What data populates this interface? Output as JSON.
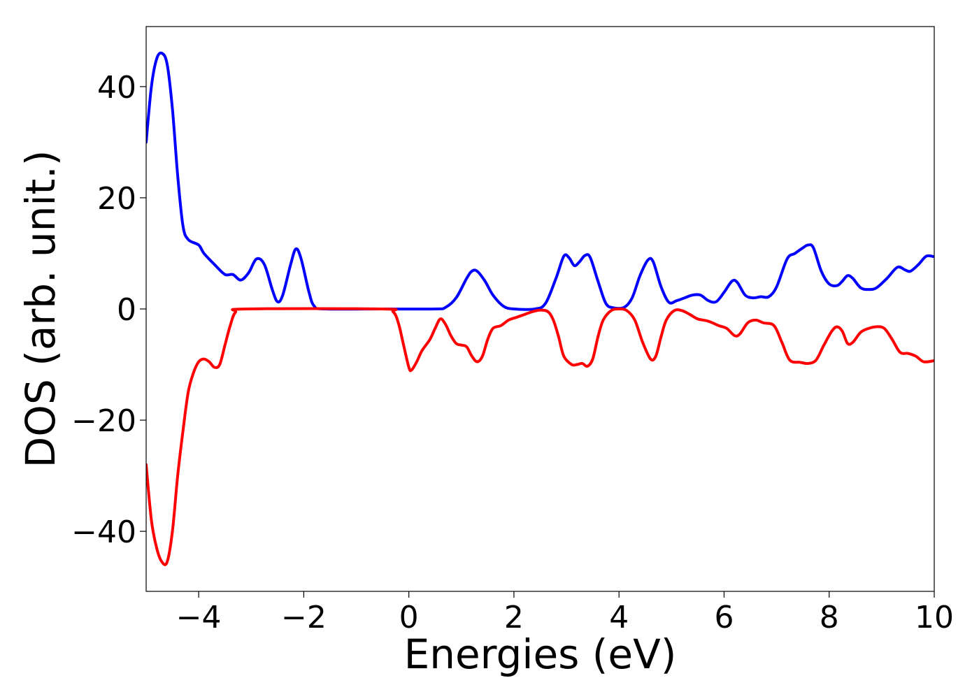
{
  "chart_data": {
    "type": "line",
    "xlabel": "Energies (eV)",
    "ylabel": "DOS (arb. unit.)",
    "xlim": [
      -5,
      10
    ],
    "ylim": [
      -50.8,
      50.8
    ],
    "xticks": [
      -4,
      -2,
      0,
      2,
      4,
      6,
      8,
      10
    ],
    "xtick_labels": [
      "−4",
      "−2",
      "0",
      "2",
      "4",
      "6",
      "8",
      "10"
    ],
    "yticks": [
      -40,
      -20,
      0,
      20,
      40
    ],
    "ytick_labels": [
      "−40",
      "−20",
      "0",
      "20",
      "40"
    ],
    "grid": false,
    "legend": "none",
    "series": [
      {
        "color": "#0000ff",
        "points": [
          [
            -5.0,
            30
          ],
          [
            -4.9,
            40
          ],
          [
            -4.8,
            45
          ],
          [
            -4.7,
            46
          ],
          [
            -4.6,
            44
          ],
          [
            -4.5,
            36
          ],
          [
            -4.4,
            24
          ],
          [
            -4.3,
            15
          ],
          [
            -4.2,
            12.5
          ],
          [
            -4.0,
            11.5
          ],
          [
            -3.9,
            10
          ],
          [
            -3.7,
            8
          ],
          [
            -3.5,
            6.2
          ],
          [
            -3.35,
            6.2
          ],
          [
            -3.2,
            5.2
          ],
          [
            -3.05,
            6.5
          ],
          [
            -2.9,
            9
          ],
          [
            -2.75,
            8
          ],
          [
            -2.6,
            3.5
          ],
          [
            -2.5,
            1.3
          ],
          [
            -2.4,
            2.5
          ],
          [
            -2.25,
            8
          ],
          [
            -2.15,
            10.8
          ],
          [
            -2.05,
            9
          ],
          [
            -1.9,
            3
          ],
          [
            -1.8,
            0.5
          ],
          [
            -1.6,
            0
          ],
          [
            -0.5,
            0
          ],
          [
            0.5,
            0
          ],
          [
            0.7,
            0.3
          ],
          [
            0.9,
            2
          ],
          [
            1.1,
            5.5
          ],
          [
            1.2,
            6.8
          ],
          [
            1.3,
            6.8
          ],
          [
            1.45,
            5
          ],
          [
            1.6,
            2.5
          ],
          [
            1.8,
            0.5
          ],
          [
            2.0,
            0
          ],
          [
            2.4,
            0
          ],
          [
            2.6,
            1
          ],
          [
            2.8,
            5.5
          ],
          [
            2.95,
            9.5
          ],
          [
            3.05,
            9.2
          ],
          [
            3.15,
            7.8
          ],
          [
            3.25,
            8.5
          ],
          [
            3.35,
            9.6
          ],
          [
            3.45,
            9.3
          ],
          [
            3.6,
            5
          ],
          [
            3.75,
            1
          ],
          [
            3.9,
            0.2
          ],
          [
            4.1,
            0.3
          ],
          [
            4.25,
            2
          ],
          [
            4.4,
            6
          ],
          [
            4.55,
            8.8
          ],
          [
            4.65,
            8.5
          ],
          [
            4.8,
            4
          ],
          [
            4.95,
            1.2
          ],
          [
            5.1,
            1.5
          ],
          [
            5.25,
            2
          ],
          [
            5.4,
            2.5
          ],
          [
            5.55,
            2.5
          ],
          [
            5.7,
            1.5
          ],
          [
            5.85,
            1.3
          ],
          [
            6.0,
            3
          ],
          [
            6.15,
            5
          ],
          [
            6.25,
            4.8
          ],
          [
            6.4,
            2.5
          ],
          [
            6.55,
            2
          ],
          [
            6.7,
            2.2
          ],
          [
            6.85,
            2.2
          ],
          [
            7.0,
            4
          ],
          [
            7.2,
            9
          ],
          [
            7.35,
            10
          ],
          [
            7.5,
            11
          ],
          [
            7.6,
            11.5
          ],
          [
            7.7,
            11
          ],
          [
            7.85,
            6.8
          ],
          [
            8.0,
            4.5
          ],
          [
            8.15,
            4.2
          ],
          [
            8.25,
            5
          ],
          [
            8.35,
            6
          ],
          [
            8.45,
            5.5
          ],
          [
            8.6,
            3.8
          ],
          [
            8.75,
            3.5
          ],
          [
            8.9,
            3.8
          ],
          [
            9.1,
            5.5
          ],
          [
            9.3,
            7.5
          ],
          [
            9.45,
            7
          ],
          [
            9.55,
            6.8
          ],
          [
            9.7,
            8
          ],
          [
            9.85,
            9.5
          ],
          [
            10.0,
            9.4
          ]
        ]
      },
      {
        "color": "#ff0000",
        "points": [
          [
            -5.0,
            -28
          ],
          [
            -4.9,
            -38
          ],
          [
            -4.8,
            -43
          ],
          [
            -4.7,
            -45.5
          ],
          [
            -4.6,
            -45.5
          ],
          [
            -4.5,
            -40
          ],
          [
            -4.4,
            -30
          ],
          [
            -4.3,
            -22
          ],
          [
            -4.2,
            -15
          ],
          [
            -4.1,
            -11.5
          ],
          [
            -4.0,
            -9.5
          ],
          [
            -3.9,
            -9
          ],
          [
            -3.8,
            -9.5
          ],
          [
            -3.7,
            -10.5
          ],
          [
            -3.6,
            -10
          ],
          [
            -3.5,
            -6.5
          ],
          [
            -3.4,
            -3
          ],
          [
            -3.3,
            -0.6
          ],
          [
            -3.1,
            0
          ],
          [
            -0.5,
            0
          ],
          [
            -0.3,
            -0.5
          ],
          [
            -0.2,
            -2.5
          ],
          [
            -0.1,
            -6.5
          ],
          [
            0.0,
            -10.5
          ],
          [
            0.05,
            -11
          ],
          [
            0.15,
            -9.5
          ],
          [
            0.25,
            -7.5
          ],
          [
            0.4,
            -5.5
          ],
          [
            0.5,
            -3.5
          ],
          [
            0.6,
            -1.8
          ],
          [
            0.7,
            -2.8
          ],
          [
            0.8,
            -4.8
          ],
          [
            0.9,
            -6.2
          ],
          [
            1.0,
            -6.5
          ],
          [
            1.1,
            -6.8
          ],
          [
            1.2,
            -8.5
          ],
          [
            1.3,
            -9.5
          ],
          [
            1.4,
            -8.5
          ],
          [
            1.5,
            -5.5
          ],
          [
            1.6,
            -3.5
          ],
          [
            1.75,
            -3
          ],
          [
            1.9,
            -2
          ],
          [
            2.05,
            -1.5
          ],
          [
            2.2,
            -1
          ],
          [
            2.35,
            -0.5
          ],
          [
            2.5,
            -0.2
          ],
          [
            2.65,
            -0.5
          ],
          [
            2.75,
            -2
          ],
          [
            2.85,
            -5
          ],
          [
            2.95,
            -8.5
          ],
          [
            3.1,
            -10
          ],
          [
            3.2,
            -10
          ],
          [
            3.3,
            -9.8
          ],
          [
            3.4,
            -10.3
          ],
          [
            3.5,
            -9
          ],
          [
            3.6,
            -5
          ],
          [
            3.7,
            -2
          ],
          [
            3.85,
            -0.3
          ],
          [
            4.0,
            0
          ],
          [
            4.15,
            -0.3
          ],
          [
            4.3,
            -2
          ],
          [
            4.45,
            -6
          ],
          [
            4.6,
            -9
          ],
          [
            4.7,
            -8.5
          ],
          [
            4.8,
            -5
          ],
          [
            4.9,
            -2
          ],
          [
            5.05,
            -0.3
          ],
          [
            5.2,
            -0.3
          ],
          [
            5.35,
            -1
          ],
          [
            5.5,
            -1.8
          ],
          [
            5.7,
            -2.2
          ],
          [
            5.9,
            -3
          ],
          [
            6.05,
            -3.5
          ],
          [
            6.2,
            -4.8
          ],
          [
            6.3,
            -4.5
          ],
          [
            6.45,
            -2.5
          ],
          [
            6.6,
            -2
          ],
          [
            6.75,
            -2.5
          ],
          [
            6.95,
            -3
          ],
          [
            7.1,
            -6
          ],
          [
            7.25,
            -9.2
          ],
          [
            7.45,
            -9.6
          ],
          [
            7.6,
            -9.8
          ],
          [
            7.75,
            -9.2
          ],
          [
            7.9,
            -6.5
          ],
          [
            8.05,
            -4
          ],
          [
            8.15,
            -3.2
          ],
          [
            8.25,
            -4
          ],
          [
            8.35,
            -6.2
          ],
          [
            8.45,
            -6
          ],
          [
            8.6,
            -4.2
          ],
          [
            8.75,
            -3.5
          ],
          [
            8.9,
            -3.2
          ],
          [
            9.05,
            -3.5
          ],
          [
            9.2,
            -5.5
          ],
          [
            9.35,
            -7.8
          ],
          [
            9.5,
            -8
          ],
          [
            9.65,
            -8.5
          ],
          [
            9.8,
            -9.5
          ],
          [
            10.0,
            -9.3
          ]
        ]
      }
    ]
  }
}
